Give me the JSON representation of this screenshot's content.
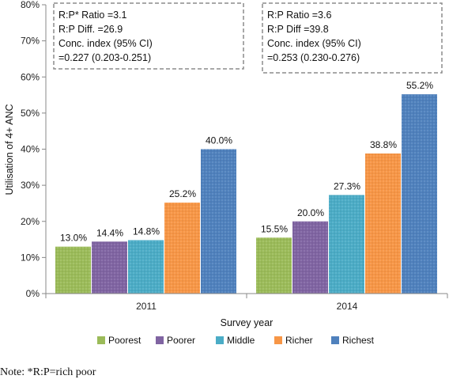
{
  "chart_data": {
    "type": "bar",
    "categories": [
      "2011",
      "2014"
    ],
    "series": [
      {
        "name": "Poorest",
        "values": [
          13.0,
          15.5
        ],
        "labels": [
          "13.0%",
          "15.5%"
        ]
      },
      {
        "name": "Poorer",
        "values": [
          14.4,
          20.0
        ],
        "labels": [
          "14.4%",
          "20.0%"
        ]
      },
      {
        "name": "Middle",
        "values": [
          14.8,
          27.3
        ],
        "labels": [
          "14.8%",
          "27.3%"
        ]
      },
      {
        "name": "Richer",
        "values": [
          25.2,
          38.8
        ],
        "labels": [
          "25.2%",
          "38.8%"
        ]
      },
      {
        "name": "Richest",
        "values": [
          40.0,
          55.2
        ],
        "labels": [
          "40.0%",
          "55.2%"
        ]
      }
    ],
    "colors": [
      "#9bbb59",
      "#8064a2",
      "#4bacc6",
      "#f79646",
      "#4f81bd"
    ],
    "xlabel": "Survey year",
    "ylabel": "Utilisation of 4+ ANC",
    "ylim": [
      0,
      80
    ],
    "yticks": [
      "0%",
      "10%",
      "20%",
      "30%",
      "40%",
      "50%",
      "60%",
      "70%",
      "80%"
    ],
    "grid": false,
    "legend_position": "bottom",
    "annotations": [
      {
        "lines": [
          "R:P* Ratio =3.1",
          "R:P Diff. =26.9",
          "Conc. index (95% CI)",
          "=0.227 (0.203-0.251)"
        ]
      },
      {
        "lines": [
          "R:P Ratio =3.6",
          "R:P Diff =39.8",
          "Conc. index (95% CI)",
          "=0.253 (0.230-0.276)"
        ]
      }
    ]
  },
  "note": "Note: *R:P=rich poor"
}
